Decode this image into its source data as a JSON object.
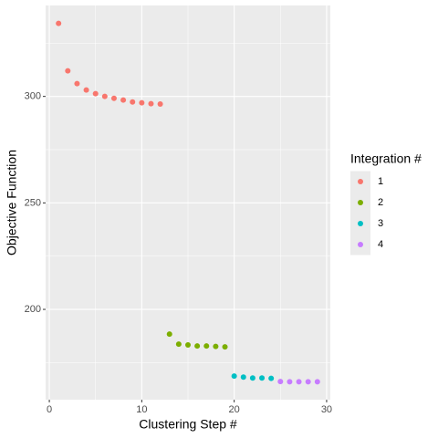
{
  "chart_data": {
    "type": "scatter",
    "x_label": "Clustering Step #",
    "y_label": "Objective Function",
    "legend_title": "Integration #",
    "legend": "right",
    "xlim": [
      -0.4,
      30.4
    ],
    "xticks": [
      0,
      10,
      20,
      30
    ],
    "ylim": [
      157.6,
      342.7
    ],
    "yticks": [
      200,
      250,
      300
    ],
    "grid": true,
    "series": [
      {
        "name": "1",
        "color": "#F8766D",
        "x": [
          1,
          2,
          3,
          4,
          5,
          6,
          7,
          8,
          9,
          10,
          11,
          12
        ],
        "values": [
          334.3,
          312,
          306,
          303,
          301.3,
          300,
          299.1,
          298.3,
          297.4,
          297,
          296.6,
          296.4
        ]
      },
      {
        "name": "2",
        "color": "#7CAE00",
        "x": [
          13,
          14,
          15,
          16,
          17,
          18,
          19
        ],
        "values": [
          188.4,
          183.7,
          183.3,
          182.8,
          182.8,
          182.6,
          182.4
        ]
      },
      {
        "name": "3",
        "color": "#00BFC4",
        "x": [
          20,
          21,
          22,
          23,
          24
        ],
        "values": [
          168.7,
          168.2,
          167.8,
          167.8,
          167.6
        ]
      },
      {
        "name": "4",
        "color": "#C77CFF",
        "x": [
          25,
          26,
          27,
          28,
          29
        ],
        "values": [
          166.1,
          166,
          166,
          166,
          166
        ]
      }
    ]
  }
}
